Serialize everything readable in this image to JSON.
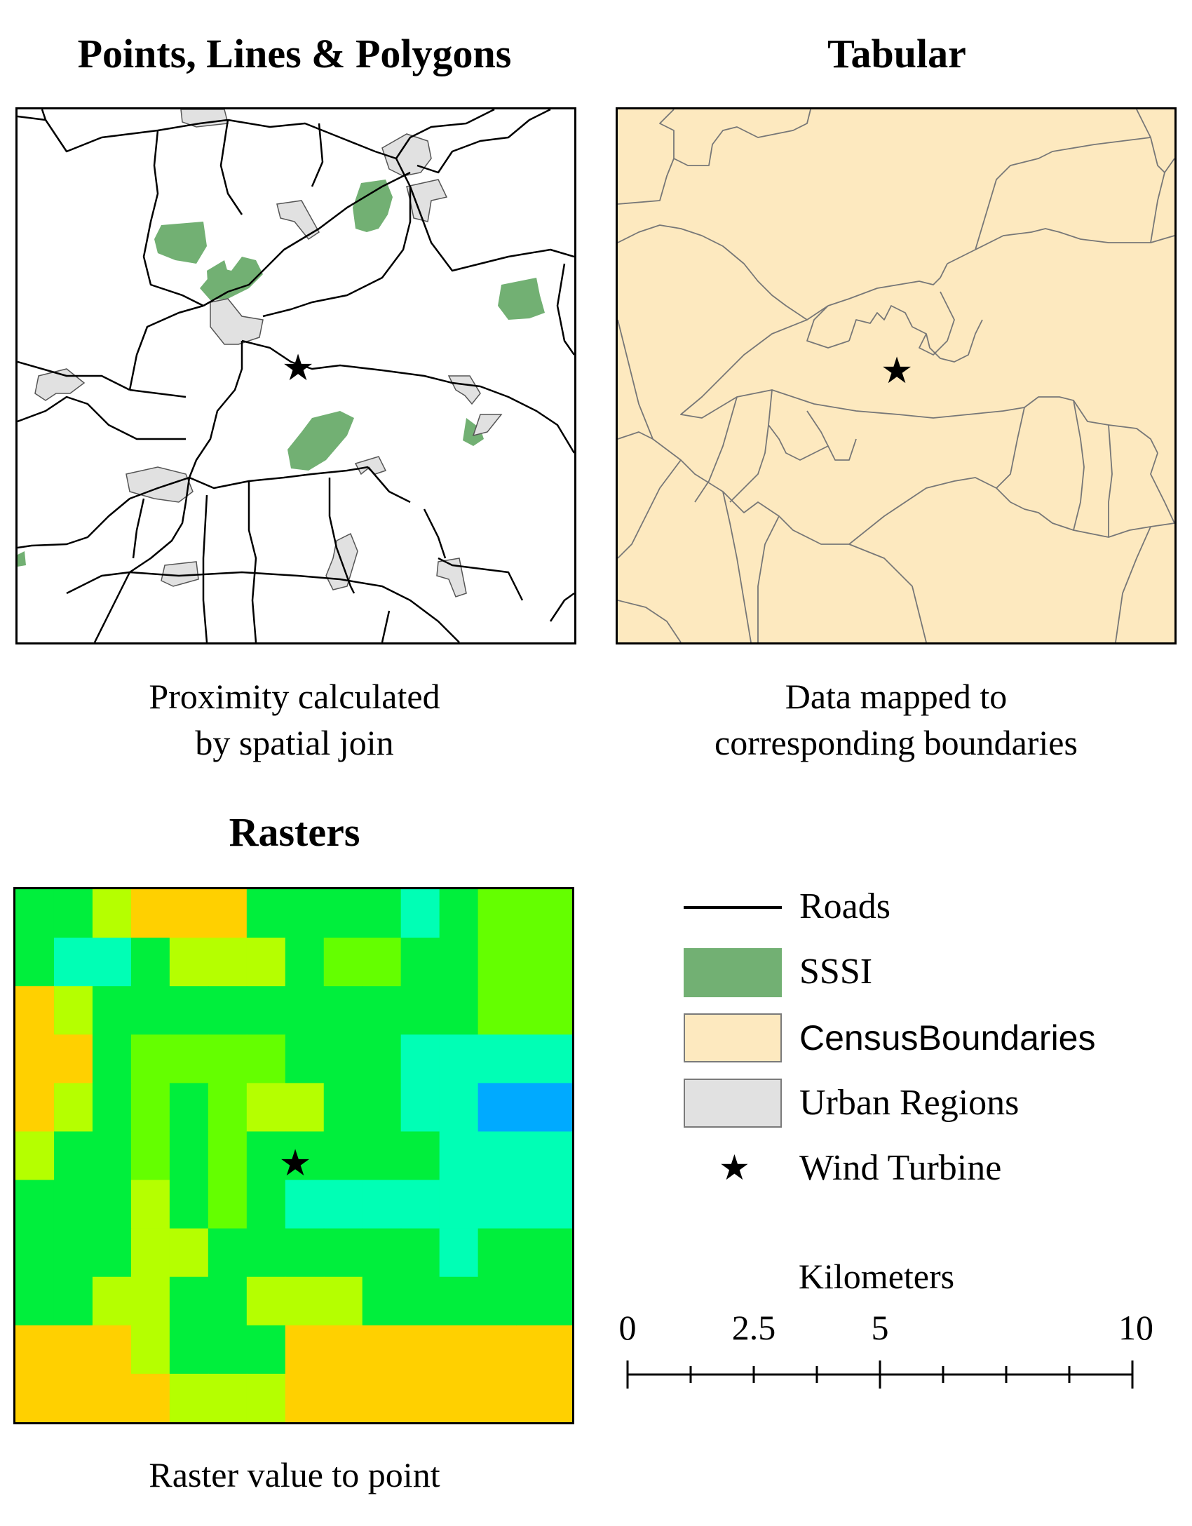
{
  "panels": {
    "vector": {
      "title": "Points, Lines & Polygons",
      "caption_line1": "Proximity calculated",
      "caption_line2": "by spatial join"
    },
    "tabular": {
      "title": "Tabular",
      "caption_line1": "Data mapped to",
      "caption_line2": "corresponding boundaries"
    },
    "raster": {
      "title": "Rasters",
      "caption_line1": "Raster value to point"
    }
  },
  "legend": {
    "items": [
      {
        "label": "Roads",
        "symbol": "line-icon",
        "color": "#000000"
      },
      {
        "label": "SSSI",
        "symbol": "fill-swatch",
        "color": "#72b073"
      },
      {
        "label": "CensusBoundaries",
        "symbol": "fill-swatch",
        "color": "#fde9bf"
      },
      {
        "label": "Urban Regions",
        "symbol": "fill-swatch",
        "color": "#e1e1e1"
      },
      {
        "label": "Wind Turbine",
        "symbol": "star-icon",
        "color": "#000000"
      }
    ]
  },
  "scale_bar": {
    "unit": "Kilometers",
    "ticks": [
      "0",
      "2.5",
      "5",
      "10"
    ]
  },
  "colors": {
    "sssi": "#72b073",
    "urban": "#e1e1e1",
    "census": "#fde9bf",
    "census_line": "#777777",
    "raster": {
      "A": "#ffbd00",
      "O": "#ffd000",
      "L": "#b5ff00",
      "Y": "#64ff00",
      "G": "#00ef3c",
      "C": "#00ffb5",
      "B": "#00aaff"
    }
  },
  "raster_grid": [
    "GGLOOOGGGGCGY",
    "GCCGLLLGYYGGY",
    "OLGGGGGGGGGGY",
    "OOGYYYYGGGCCC",
    "OLGYGYLLGGCCB",
    "LGGYGYGGGGGCC",
    "GGGLGYGCCCCCC",
    "GGGLLGGGGGGCG",
    "GGLLGGLLLGGGG",
    "OOOLGGGOOOOOO",
    "OOOOLLLOOOOOO"
  ]
}
